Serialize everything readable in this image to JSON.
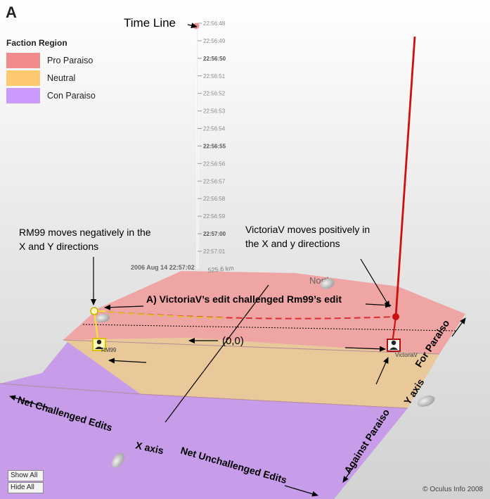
{
  "panel_label": "A",
  "legend": {
    "title": "Faction Region",
    "items": [
      {
        "label": "Pro Paraiso",
        "color": "#f28b8b"
      },
      {
        "label": "Neutral",
        "color": "#fcc96e"
      },
      {
        "label": "Con Paraiso",
        "color": "#cc99ff"
      }
    ]
  },
  "timeline": {
    "title": "Time Line",
    "ticks": [
      "22:56:48",
      "22:56:49",
      "22:56:50",
      "22:56:51",
      "22:56:52",
      "22:56:53",
      "22:56:54",
      "22:56:55",
      "22:56:56",
      "22:56:57",
      "22:56:58",
      "22:56:59",
      "22:57:00",
      "22:57:01"
    ],
    "bold_ticks": [
      "22:56:50",
      "22:56:55",
      "22:57:00"
    ],
    "start_label": "2006 Aug 14 22:57:02",
    "scale_label": "525.6 km"
  },
  "compass": "North",
  "annotations": {
    "rm99_note_line1": "RM99 moves negatively in the",
    "rm99_note_line2": "X and Y directions",
    "victoria_note_line1": "VictoriaV moves positively in",
    "victoria_note_line2": "the X and y directions",
    "edit_note": "A) VictoriaV’s edit challenged Rm99’s edit",
    "origin": "(0,0)"
  },
  "users": {
    "rm99": "RM99",
    "victoria": "VictoriaV"
  },
  "axes": {
    "x_axis": "X axis",
    "y_axis": "Y axis",
    "x_negative": "Net Challenged Edits",
    "x_positive": "Net Unchallenged Edits",
    "y_negative": "Against Paraiso",
    "y_positive": "For Paraiso"
  },
  "controls": {
    "show_all": "Show All",
    "hide_all": "Hide All"
  },
  "copyright": "© Oculus Info 2008"
}
